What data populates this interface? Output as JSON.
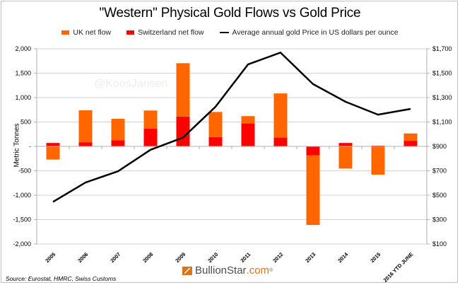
{
  "chart_data": {
    "type": "bar",
    "subtype": "stacked-bar-with-line-secondary-axis",
    "title": "\"Western\" Physical Gold Flows vs Gold Price",
    "categories": [
      "2005",
      "2006",
      "2007",
      "2008",
      "2009",
      "2010",
      "2011",
      "2012",
      "2013",
      "2014",
      "2015",
      "2016 YTD JUNE"
    ],
    "series": [
      {
        "name": "UK net flow",
        "type": "bar",
        "axis": "left",
        "color": "#ff6600",
        "values": [
          -270,
          655,
          440,
          370,
          1095,
          515,
          150,
          905,
          -1425,
          -455,
          -580,
          150
        ]
      },
      {
        "name": "Switzerland net flow",
        "type": "bar",
        "axis": "left",
        "color": "#ff0000",
        "values": [
          70,
          85,
          125,
          365,
          610,
          190,
          470,
          180,
          -185,
          70,
          15,
          115
        ]
      },
      {
        "name": "Average annual gold Price in US dollars per ounce",
        "type": "line",
        "axis": "right",
        "color": "#000000",
        "values": [
          445,
          604,
          696,
          872,
          972,
          1225,
          1572,
          1669,
          1411,
          1266,
          1160,
          1207
        ]
      }
    ],
    "ylabel": "Metric Tonnes",
    "xlabel": "",
    "ylim": [
      -2000,
      2000
    ],
    "y_ticks": [
      2000,
      1500,
      1000,
      500,
      0,
      -500,
      -1000,
      -1500,
      -2000
    ],
    "y_tick_labels": [
      "2,000",
      "1,500",
      "1,000",
      "500",
      "-",
      "-500",
      "-1,000",
      "-1,500",
      "-2,000"
    ],
    "y2lim": [
      100,
      1700
    ],
    "y2_ticks": [
      1700,
      1500,
      1300,
      1100,
      900,
      700,
      500,
      300,
      100
    ],
    "y2_tick_labels": [
      "$1,700",
      "$1,500",
      "$1,300",
      "$1,100",
      "$900",
      "$700",
      "$500",
      "$300",
      "$100"
    ],
    "grid": true,
    "legend_position": "top-center"
  },
  "legend": {
    "uk": "UK net flow",
    "swiss": "Switzerland net flow",
    "price": "Average annual gold Price in US dollars per ounce"
  },
  "watermark": "@KoosJansen",
  "source": "Source: Eurostat, HMRC, Swiss Customs",
  "brand": {
    "name": "BullionStar",
    "dot": ".com",
    "reg": "®"
  }
}
